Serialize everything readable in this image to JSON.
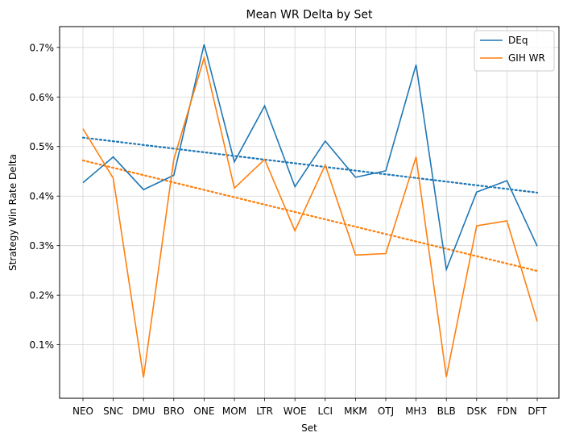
{
  "chart_data": {
    "type": "line",
    "title": "Mean WR Delta by Set",
    "xlabel": "Set",
    "ylabel": "Strategy Win Rate Delta",
    "categories": [
      "NEO",
      "SNC",
      "DMU",
      "BRO",
      "ONE",
      "MOM",
      "LTR",
      "WOE",
      "LCI",
      "MKM",
      "OTJ",
      "MH3",
      "BLB",
      "DSK",
      "FDN",
      "DFT"
    ],
    "series": [
      {
        "name": "DEq",
        "color": "#1f77b4",
        "values": [
          0.427,
          0.479,
          0.413,
          0.442,
          0.706,
          0.469,
          0.582,
          0.419,
          0.511,
          0.438,
          0.451,
          0.665,
          0.252,
          0.408,
          0.431,
          0.299
        ],
        "trend": [
          0.518,
          0.407
        ]
      },
      {
        "name": "GIH WR",
        "color": "#ff7f0e",
        "values": [
          0.536,
          0.436,
          0.034,
          0.474,
          0.679,
          0.416,
          0.474,
          0.33,
          0.463,
          0.281,
          0.284,
          0.479,
          0.035,
          0.34,
          0.35,
          0.147
        ],
        "trend": [
          0.472,
          0.249
        ]
      }
    ],
    "y_ticks": [
      "0.1%",
      "0.2%",
      "0.3%",
      "0.4%",
      "0.5%",
      "0.6%",
      "0.7%"
    ],
    "ylim": [
      -0.008,
      0.742
    ],
    "grid": true,
    "legend": "top-right"
  }
}
